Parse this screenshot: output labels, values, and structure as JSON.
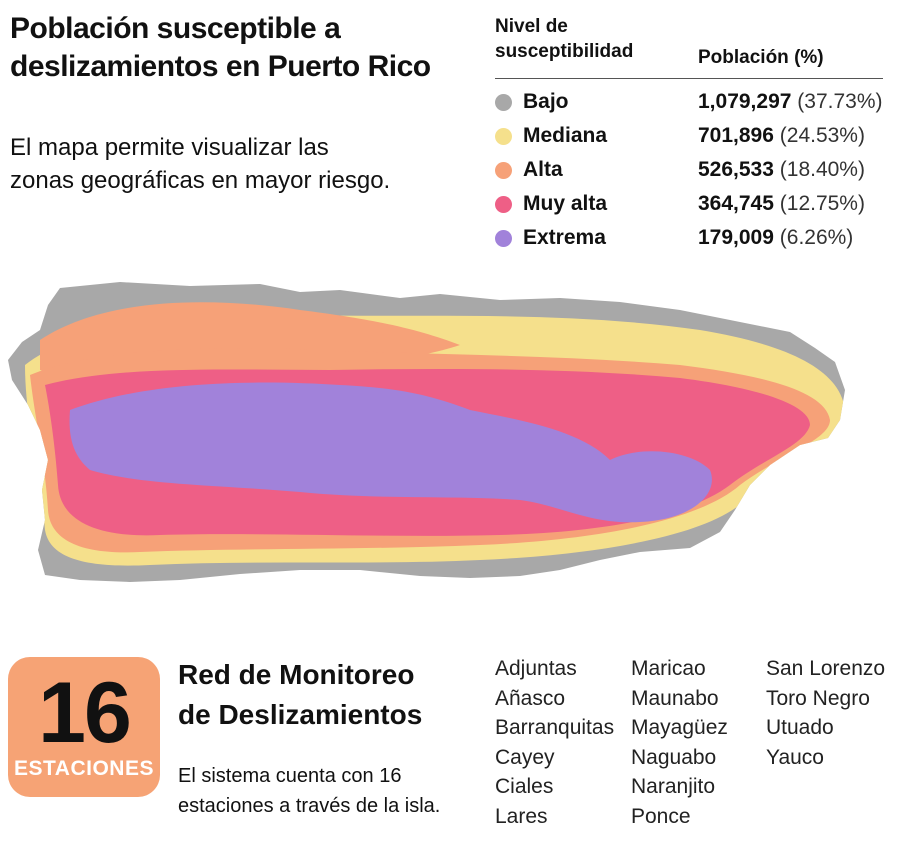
{
  "header": {
    "title_line1": "Población susceptible a",
    "title_line2": "deslizamientos en Puerto Rico",
    "subtitle_line1": "El mapa permite visualizar las",
    "subtitle_line2": "zonas geográficas en mayor riesgo."
  },
  "legend": {
    "level_header_line1": "Nivel de",
    "level_header_line2": "susceptibilidad",
    "population_header": "Población (%)",
    "rows": [
      {
        "level": "Bajo",
        "population": "1,079,297",
        "percent": "(37.73%)",
        "color": "#a8a8a8"
      },
      {
        "level": "Mediana",
        "population": "701,896",
        "percent": "(24.53%)",
        "color": "#f5e08c"
      },
      {
        "level": "Alta",
        "population": "526,533",
        "percent": "(18.40%)",
        "color": "#f6a178"
      },
      {
        "level": "Muy alta",
        "population": "364,745",
        "percent": "(12.75%)",
        "color": "#ee5f86"
      },
      {
        "level": "Extrema",
        "population": "179,009",
        "percent": "(6.26%)",
        "color": "#a182da"
      }
    ]
  },
  "monitoring": {
    "count": "16",
    "count_label": "ESTACIONES",
    "badge_color": "#f6a375",
    "title_line1": "Red de Monitoreo",
    "title_line2": "de Deslizamientos",
    "desc_line1": "El sistema cuenta con 16",
    "desc_line2": "estaciones a través de la isla.",
    "stations_col1": [
      "Adjuntas",
      "Añasco",
      "Barranquitas",
      "Cayey",
      "Ciales",
      "Lares"
    ],
    "stations_col2": [
      "Maricao",
      "Maunabo",
      "Mayagüez",
      "Naguabo",
      "Naranjito",
      "Ponce"
    ],
    "stations_col3": [
      "San Lorenzo",
      "Toro Negro",
      "Utuado",
      "Yauco"
    ]
  }
}
